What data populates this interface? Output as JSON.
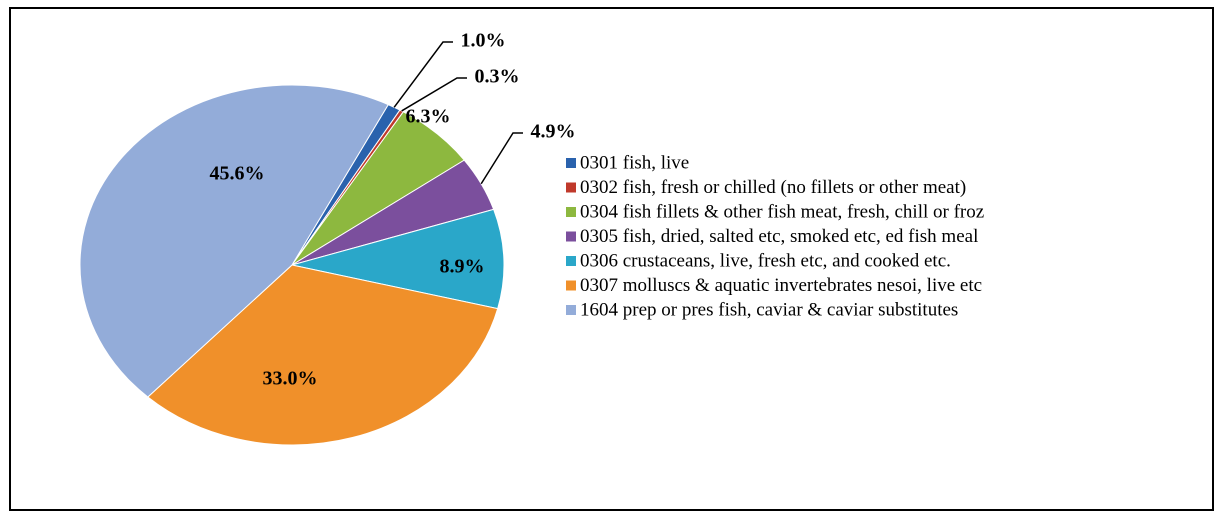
{
  "chart_data": {
    "type": "pie",
    "categories": [
      "0301 fish, live",
      "0302 fish, fresh or chilled (no fillets or other meat)",
      "0304 fish fillets & other fish meat, fresh, chill or froz",
      "0305 fish, dried, salted etc, smoked etc, ed fish meal",
      "0306 crustaceans, live, fresh etc, and cooked etc.",
      "0307 molluscs & aquatic invertebrates nesoi, live etc",
      "1604 prep or pres fish, caviar & caviar substitutes"
    ],
    "values": [
      1.0,
      0.3,
      6.3,
      4.9,
      8.9,
      33.0,
      45.6
    ],
    "value_labels": [
      "1.0%",
      "0.3%",
      "6.3%",
      "4.9%",
      "8.9%",
      "33.0%",
      "45.6%"
    ],
    "colors": [
      "#2a62ad",
      "#c0392b",
      "#8db83f",
      "#7b4f9d",
      "#2aa7c9",
      "#f0902a",
      "#93acd9"
    ],
    "legend": "right"
  }
}
